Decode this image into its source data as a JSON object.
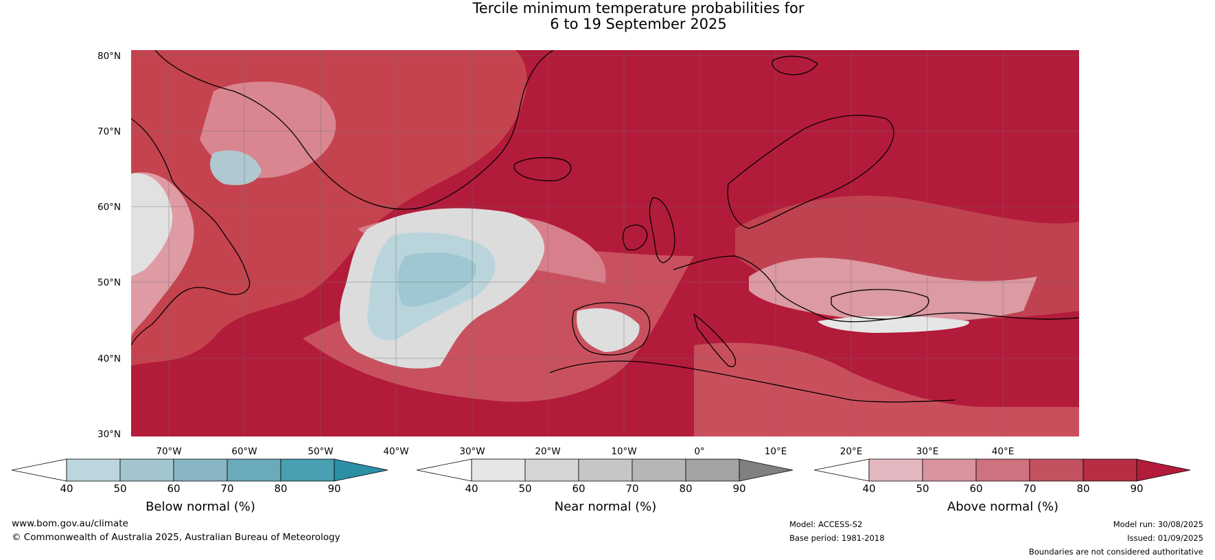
{
  "title": {
    "line1": "Tercile minimum temperature probabilities for",
    "line2": "6 to 19 September 2025"
  },
  "map": {
    "region": "North Atlantic and Europe",
    "lat_labels": [
      "80°N",
      "70°N",
      "60°N",
      "50°N",
      "40°N",
      "30°N"
    ],
    "lon_labels": [
      "70°W",
      "60°W",
      "50°W",
      "40°W",
      "30°W",
      "20°W",
      "10°W",
      "0°",
      "10°E",
      "20°E",
      "30°E",
      "40°E"
    ],
    "lat_range": [
      30,
      81
    ],
    "lon_range": [
      -77,
      48
    ],
    "gridlines": true,
    "colors": {
      "above_dark": "#b31b3a",
      "above_mid": "#c9515f",
      "above_light": "#de9ba4",
      "near": "#dcdcdc",
      "below_light": "#bcd6de",
      "below_mid": "#9fc7d2",
      "land_border": "#000000",
      "country_border": "#7f7f7f"
    }
  },
  "colorbars": [
    {
      "label": "Below normal (%)",
      "ticks": [
        "40",
        "50",
        "60",
        "70",
        "80",
        "90"
      ],
      "colors": [
        "#bdd5dd",
        "#a3c5ce",
        "#88b7c3",
        "#6aaabb",
        "#48a0b2"
      ],
      "extend_color": "#2b8fa6"
    },
    {
      "label": "Near normal (%)",
      "ticks": [
        "40",
        "50",
        "60",
        "70",
        "80",
        "90"
      ],
      "colors": [
        "#e6e6e6",
        "#d5d5d5",
        "#c6c6c6",
        "#b6b6b6",
        "#a3a3a3"
      ],
      "extend_color": "#808080"
    },
    {
      "label": "Above normal (%)",
      "ticks": [
        "40",
        "50",
        "60",
        "70",
        "80",
        "90"
      ],
      "colors": [
        "#e4b7c0",
        "#da949f",
        "#cd727e",
        "#c2525f",
        "#b82d44"
      ],
      "extend_color": "#b31b3a"
    }
  ],
  "footer": {
    "website": "www.bom.gov.au/climate",
    "copyright": "© Commonwealth of Australia 2025, Australian Bureau of Meteorology",
    "model": "Model: ACCESS-S2",
    "base_period": "Base period: 1981-2018",
    "model_run": "Model run: 30/08/2025",
    "issued": "Issued: 01/09/2025",
    "disclaimer": "Boundaries are not considered authoritative"
  }
}
